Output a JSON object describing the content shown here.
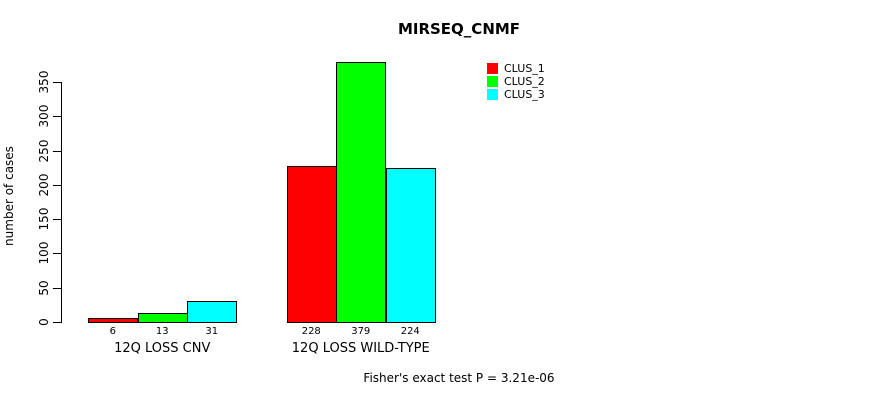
{
  "chart_data": {
    "type": "bar",
    "title": "MIRSEQ_CNMF",
    "categories": [
      "12Q LOSS CNV",
      "12Q LOSS WILD-TYPE"
    ],
    "series": [
      {
        "name": "CLUS_1",
        "color": "#ff0000",
        "values": [
          6,
          228
        ]
      },
      {
        "name": "CLUS_2",
        "color": "#00ff00",
        "values": [
          13,
          379
        ]
      },
      {
        "name": "CLUS_3",
        "color": "#00ffff",
        "values": [
          31,
          224
        ]
      }
    ],
    "xlabel": "",
    "ylabel": "number of cases",
    "ylim": [
      0,
      350
    ],
    "yticks": [
      0,
      50,
      100,
      150,
      200,
      250,
      300,
      350
    ],
    "show_bar_value_labels": true,
    "legend_position": "top-right",
    "legend_labels": [
      "CLUS_1",
      "CLUS_2",
      "CLUS_3"
    ],
    "annotation": "Fisher's exact test P = 3.21e-06",
    "grid": false,
    "background": "#ffffff",
    "bar_border_color": "#000000"
  }
}
